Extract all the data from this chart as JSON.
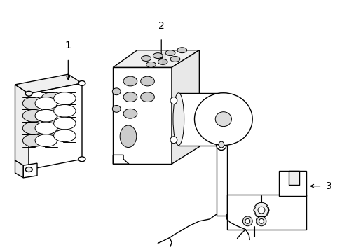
{
  "background_color": "#ffffff",
  "line_color": "#000000",
  "line_width": 1.0,
  "label_1": "1",
  "label_2": "2",
  "label_3": "3",
  "figsize": [
    4.89,
    3.6
  ],
  "dpi": 100
}
